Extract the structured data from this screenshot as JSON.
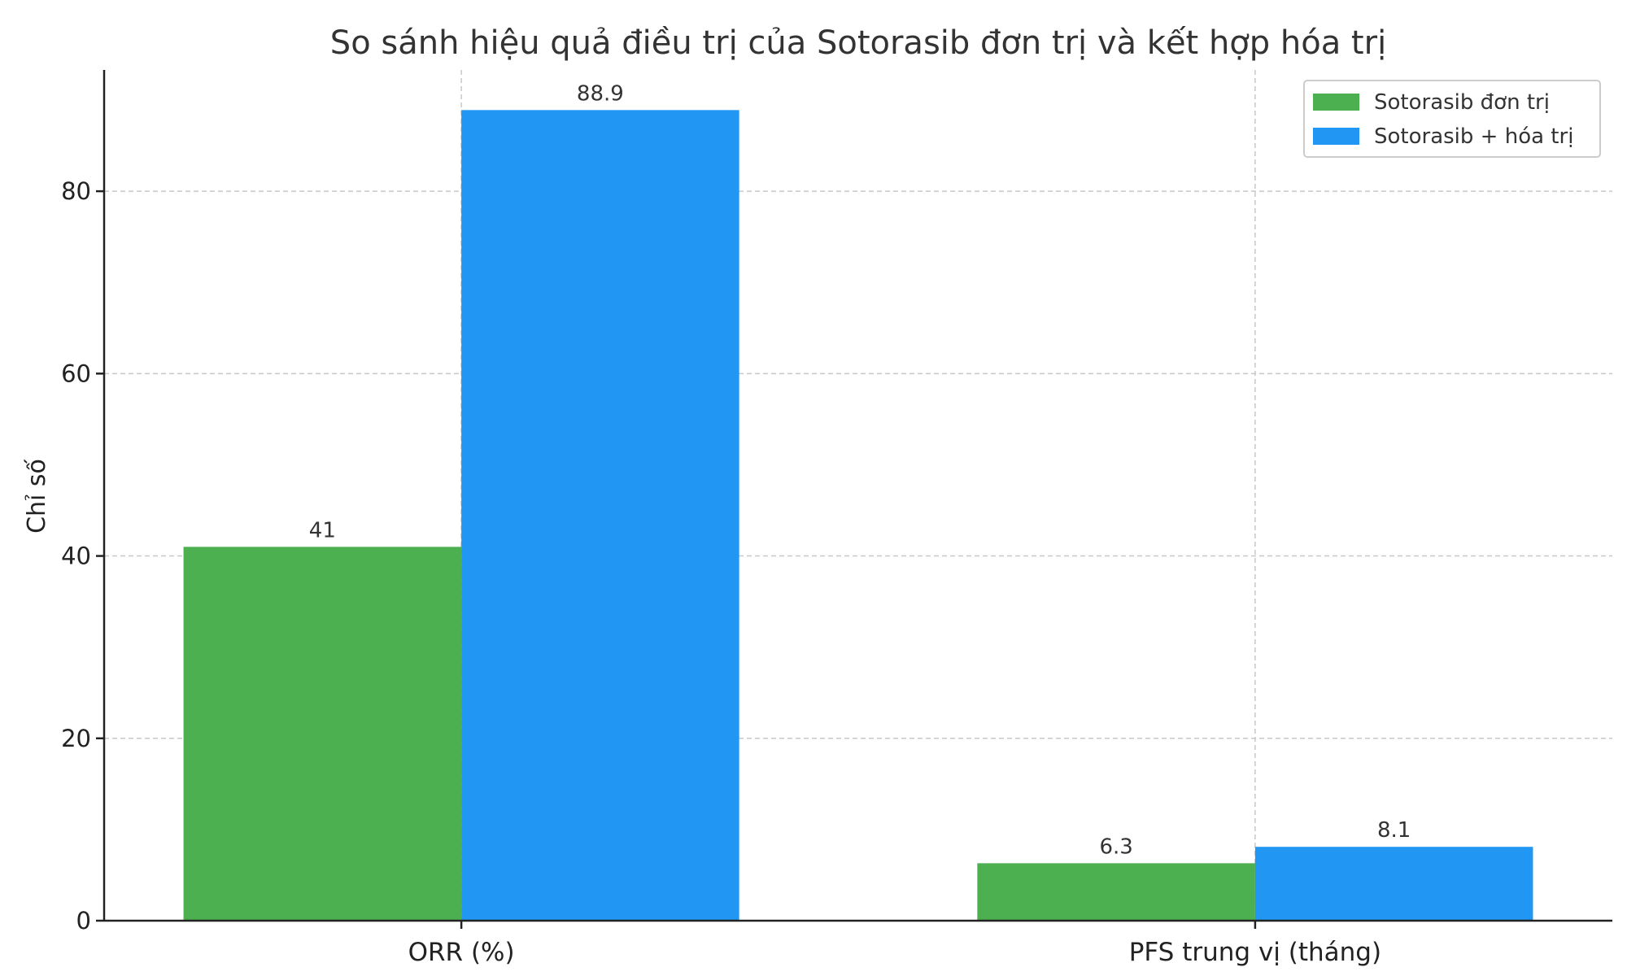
{
  "chart_data": {
    "type": "bar",
    "title": "So sánh hiệu quả điều trị của Sotorasib đơn trị và kết hợp hóa trị",
    "xlabel": "",
    "ylabel": "Chỉ số",
    "categories": [
      "ORR (%)",
      "PFS trung vị (tháng)"
    ],
    "series": [
      {
        "name": "Sotorasib đơn trị",
        "values": [
          41,
          6.3
        ],
        "color": "#4caf50"
      },
      {
        "name": "Sotorasib + hóa trị",
        "values": [
          88.9,
          8.1
        ],
        "color": "#2196f3"
      }
    ],
    "value_labels": [
      [
        "41",
        "6.3"
      ],
      [
        "88.9",
        "8.1"
      ]
    ],
    "ylim": [
      0,
      93.3
    ],
    "yticks": [
      0,
      20,
      40,
      60,
      80
    ],
    "ytick_labels": [
      "0",
      "20",
      "40",
      "60",
      "80"
    ],
    "grid": true,
    "legend_position": "top-right"
  }
}
